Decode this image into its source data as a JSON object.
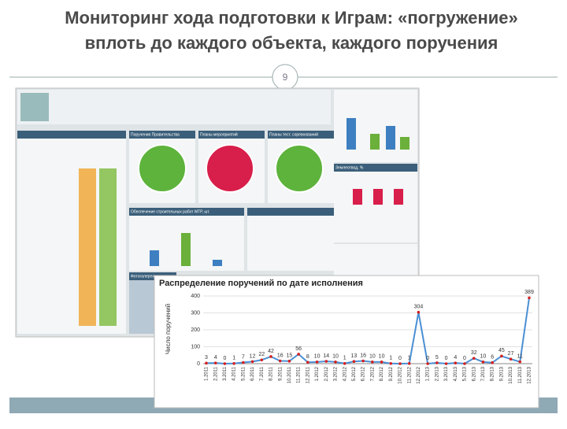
{
  "slide": {
    "title_line1": "Мониторинг хода подготовки к Играм: «погружение»",
    "title_line2": "вплоть до каждого объекта, каждого поручения",
    "page_number": "9"
  },
  "dashboard": {
    "panels": [
      "Поручения Правительства",
      "Планы мероприятий",
      "Планы тест. соревнований",
      "Землеотвод, %",
      "Обеспечение строительных работ МТР, шт.",
      "Фотогалерея"
    ]
  },
  "chart_data": {
    "type": "line",
    "title": "Распределение поручений по дате исполнения",
    "y_label": "Число поручений",
    "categories": [
      "1.2011",
      "2.2011",
      "3.2011",
      "4.2011",
      "5.2011",
      "6.2011",
      "7.2011",
      "8.2011",
      "9.2011",
      "10.2011",
      "11.2011",
      "12.2011",
      "1.2012",
      "2.2012",
      "3.2012",
      "4.2012",
      "5.2012",
      "6.2012",
      "7.2012",
      "8.2012",
      "9.2012",
      "10.2012",
      "11.2012",
      "12.2012",
      "1.2013",
      "2.2013",
      "3.2013",
      "4.2013",
      "5.2013",
      "6.2013",
      "7.2013",
      "8.2013",
      "9.2013",
      "10.2013",
      "11.2013",
      "12.2013"
    ],
    "values": [
      3,
      4,
      0,
      1,
      7,
      12,
      22,
      42,
      16,
      15,
      56,
      8,
      10,
      14,
      10,
      1,
      13,
      16,
      10,
      10,
      1,
      0,
      1,
      304,
      0,
      5,
      0,
      4,
      0,
      32,
      10,
      6,
      45,
      27,
      11,
      389
    ],
    "color": "#4a8fd4",
    "marker_color": "#d42020",
    "ylim": [
      0,
      400
    ],
    "yticks": [
      0,
      100,
      200,
      300,
      400
    ],
    "grid": true
  }
}
